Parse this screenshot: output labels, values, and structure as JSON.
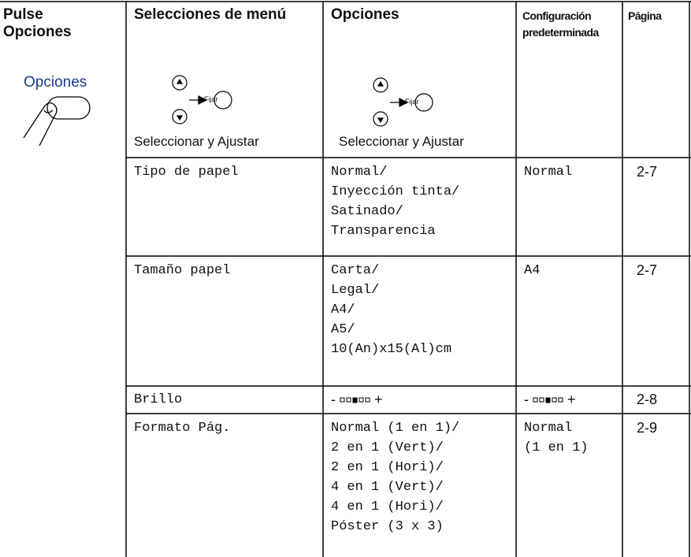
{
  "header": {
    "col1": {
      "title": "Pulse Opciones",
      "button_label": "Opciones"
    },
    "col2": {
      "title": "Selecciones de menú",
      "button_label": "Fijar",
      "caption": "Seleccionar y Ajustar"
    },
    "col3": {
      "title": "Opciones",
      "button_label": "Fijar",
      "caption": "Seleccionar y Ajustar"
    },
    "col4": "Configuración predeterminada",
    "col5": "Página"
  },
  "rows": [
    {
      "menu": "Tipo de papel",
      "options": [
        "Normal/",
        "Inyección tinta/",
        "Satinado/",
        "Transparencia"
      ],
      "default": [
        "Normal"
      ],
      "page": "2-7"
    },
    {
      "menu": "Tamaño papel",
      "options": [
        "Carta/",
        "Legal/",
        "A4/",
        "A5/",
        "10(An)x15(Al)cm"
      ],
      "default": [
        "A4"
      ],
      "page": "2-7"
    },
    {
      "menu": "Brillo",
      "options": {
        "minus": "-",
        "plus": "+"
      },
      "default": {
        "minus": "-",
        "plus": "+"
      },
      "page": "2-8"
    },
    {
      "menu": "Formato Pág.",
      "options": [
        "Normal (1 en 1)/",
        "2 en 1 (Vert)/",
        "2 en 1 (Hori)/",
        "4 en 1 (Vert)/",
        "4 en 1 (Hori)/",
        "Póster (3 x 3)"
      ],
      "default": [
        "Normal",
        "(1 en 1)"
      ],
      "page": "2-9"
    }
  ]
}
